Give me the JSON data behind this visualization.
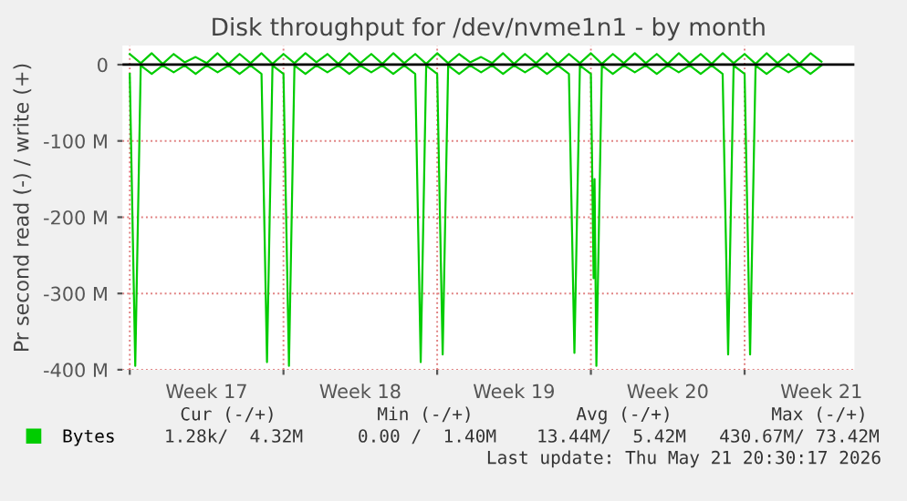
{
  "chart_data": {
    "type": "line",
    "title": "Disk throughput for /dev/nvme1n1 - by month",
    "ylabel": "Pr second read (-) / write (+)",
    "series": [
      {
        "name": "Bytes",
        "color": "#00cc00",
        "x": [
          "2026-04-20T00:00",
          "2026-04-20T12:00",
          "2026-04-21T00:00",
          "2026-04-21T12:00",
          "2026-04-22T00:00",
          "2026-04-22T12:00",
          "2026-04-23T00:00",
          "2026-04-23T12:00",
          "2026-04-24T00:00",
          "2026-04-24T12:00",
          "2026-04-25T00:00",
          "2026-04-25T12:00",
          "2026-04-26T00:00",
          "2026-04-26T12:00",
          "2026-04-27T00:00",
          "2026-04-27T12:00",
          "2026-04-28T00:00",
          "2026-04-28T12:00",
          "2026-04-29T00:00",
          "2026-04-29T12:00",
          "2026-04-30T00:00",
          "2026-04-30T12:00",
          "2026-05-01T00:00",
          "2026-05-01T12:00",
          "2026-05-02T00:00",
          "2026-05-02T12:00",
          "2026-05-03T00:00",
          "2026-05-03T12:00",
          "2026-05-04T00:00",
          "2026-05-04T12:00",
          "2026-05-05T00:00",
          "2026-05-05T12:00",
          "2026-05-06T00:00",
          "2026-05-06T12:00",
          "2026-05-07T00:00",
          "2026-05-07T12:00",
          "2026-05-08T00:00",
          "2026-05-08T12:00",
          "2026-05-09T00:00",
          "2026-05-09T12:00",
          "2026-05-10T00:00",
          "2026-05-10T12:00",
          "2026-05-11T00:00",
          "2026-05-11T12:00",
          "2026-05-12T00:00",
          "2026-05-12T12:00",
          "2026-05-13T00:00",
          "2026-05-13T12:00",
          "2026-05-14T00:00",
          "2026-05-14T12:00",
          "2026-05-15T00:00",
          "2026-05-15T12:00",
          "2026-05-16T00:00",
          "2026-05-16T12:00",
          "2026-05-17T00:00",
          "2026-05-17T12:00",
          "2026-05-18T00:00",
          "2026-05-18T12:00",
          "2026-05-19T00:00",
          "2026-05-19T12:00",
          "2026-05-20T00:00",
          "2026-05-20T12:00",
          "2026-05-21T00:00",
          "2026-05-21T12:00"
        ],
        "values": [
          14,
          2,
          15,
          1,
          14,
          3,
          10,
          2,
          15,
          1,
          14,
          2,
          15,
          1,
          14,
          2,
          15,
          3,
          14,
          1,
          15,
          2,
          14,
          1,
          15,
          2,
          14,
          1,
          15,
          2,
          14,
          3,
          10,
          2,
          15,
          1,
          14,
          2,
          15,
          1,
          14,
          2,
          15,
          1,
          14,
          2,
          15,
          2,
          14,
          1,
          15,
          2,
          14,
          1,
          15,
          2,
          14,
          1,
          15,
          2,
          14,
          1,
          15,
          4
        ]
      },
      {
        "color": "#00cc00",
        "x": [
          "2026-04-20T00:00",
          "2026-04-20T06:00",
          "2026-04-20T12:00",
          "2026-04-21T00:00",
          "2026-04-21T12:00",
          "2026-04-22T00:00",
          "2026-04-22T12:00",
          "2026-04-23T00:00",
          "2026-04-23T12:00",
          "2026-04-24T00:00",
          "2026-04-24T12:00",
          "2026-04-25T00:00",
          "2026-04-25T12:00",
          "2026-04-26T00:00",
          "2026-04-26T06:00",
          "2026-04-26T12:00",
          "2026-04-27T00:00",
          "2026-04-27T06:00",
          "2026-04-27T12:00",
          "2026-04-28T00:00",
          "2026-04-28T12:00",
          "2026-04-29T00:00",
          "2026-04-29T12:00",
          "2026-04-30T00:00",
          "2026-04-30T12:00",
          "2026-05-01T00:00",
          "2026-05-01T12:00",
          "2026-05-02T00:00",
          "2026-05-02T12:00",
          "2026-05-03T00:00",
          "2026-05-03T06:00",
          "2026-05-03T12:00",
          "2026-05-04T00:00",
          "2026-05-04T06:00",
          "2026-05-04T12:00",
          "2026-05-05T00:00",
          "2026-05-05T12:00",
          "2026-05-06T00:00",
          "2026-05-06T12:00",
          "2026-05-07T00:00",
          "2026-05-07T12:00",
          "2026-05-08T00:00",
          "2026-05-08T12:00",
          "2026-05-09T00:00",
          "2026-05-09T12:00",
          "2026-05-10T00:00",
          "2026-05-10T06:00",
          "2026-05-10T12:00",
          "2026-05-11T00:00",
          "2026-05-11T03:00",
          "2026-05-11T04:00",
          "2026-05-11T06:00",
          "2026-05-11T12:00",
          "2026-05-12T00:00",
          "2026-05-12T12:00",
          "2026-05-13T00:00",
          "2026-05-13T12:00",
          "2026-05-14T00:00",
          "2026-05-14T12:00",
          "2026-05-15T00:00",
          "2026-05-15T12:00",
          "2026-05-16T00:00",
          "2026-05-16T12:00",
          "2026-05-17T00:00",
          "2026-05-17T06:00",
          "2026-05-17T12:00",
          "2026-05-18T00:00",
          "2026-05-18T06:00",
          "2026-05-18T12:00",
          "2026-05-19T00:00",
          "2026-05-19T12:00",
          "2026-05-20T00:00",
          "2026-05-20T12:00",
          "2026-05-21T00:00",
          "2026-05-21T12:00"
        ],
        "values": [
          -12,
          -395,
          -1,
          -12,
          -1,
          -10,
          -1,
          -12,
          -1,
          -10,
          -1,
          -12,
          -1,
          -12,
          -390,
          -1,
          -12,
          -395,
          -1,
          -12,
          -1,
          -10,
          -1,
          -12,
          -1,
          -10,
          -1,
          -12,
          -1,
          -12,
          -390,
          -1,
          -12,
          -380,
          -1,
          -12,
          -1,
          -10,
          -1,
          -12,
          -1,
          -10,
          -1,
          -12,
          -1,
          -12,
          -378,
          -1,
          -12,
          -280,
          -150,
          -395,
          -1,
          -12,
          -1,
          -10,
          -1,
          -12,
          -1,
          -10,
          -1,
          -12,
          -1,
          -12,
          -380,
          -1,
          -12,
          -380,
          -1,
          -12,
          -1,
          -10,
          -1,
          -12,
          -1
        ]
      }
    ],
    "xlim": [
      "2026-04-19T16:00",
      "2026-05-23T00:00"
    ],
    "xticks": [
      {
        "value": "2026-04-20T00:00",
        "label": null
      },
      {
        "value": "2026-04-23T12:00",
        "label": "Week 17"
      },
      {
        "value": "2026-04-27T00:00",
        "label": null
      },
      {
        "value": "2026-04-30T12:00",
        "label": "Week 18"
      },
      {
        "value": "2026-05-04T00:00",
        "label": null
      },
      {
        "value": "2026-05-07T12:00",
        "label": "Week 19"
      },
      {
        "value": "2026-05-11T00:00",
        "label": null
      },
      {
        "value": "2026-05-14T12:00",
        "label": "Week 20"
      },
      {
        "value": "2026-05-18T00:00",
        "label": null
      },
      {
        "value": "2026-05-21T12:00",
        "label": "Week 21"
      }
    ],
    "ylim": [
      -400,
      25
    ],
    "yticks": [
      {
        "value": -400,
        "label": "-400 M"
      },
      {
        "value": -300,
        "label": "-300 M"
      },
      {
        "value": -200,
        "label": "-200 M"
      },
      {
        "value": -100,
        "label": "-100 M"
      },
      0
    ],
    "ref_lines": [
      {
        "axis": "y",
        "value": 0,
        "color": "#000000"
      }
    ],
    "grid": true,
    "legend": "bottom left",
    "annotations": [
      "Cur (-/+)",
      "Min (-/+)",
      "Avg (-/+)",
      "Max (-/+)",
      "1.28k/  4.32M",
      "0.00 /  1.40M",
      "13.44M/  5.42M",
      "430.67M/ 73.42M",
      "Last update: Thu May 21 20:30:17 2026"
    ]
  }
}
